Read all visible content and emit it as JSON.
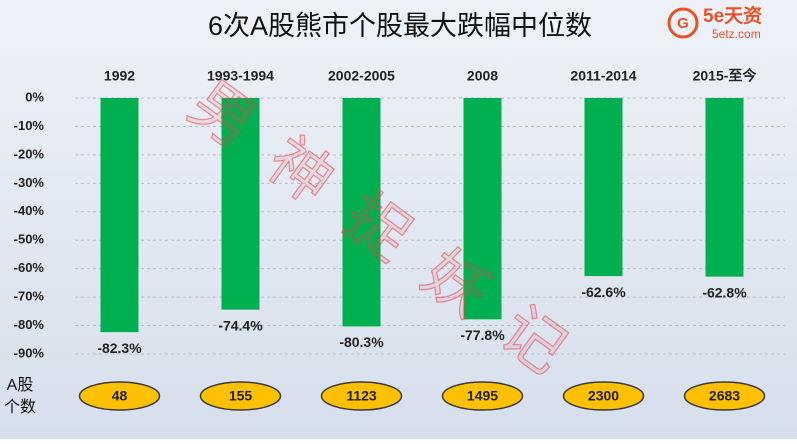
{
  "chart_data": {
    "type": "bar",
    "title": "6次A股熊市个股最大跌幅中位数",
    "logo_text": "5e天资",
    "logo_url": "5etz.com",
    "watermark": "男神捉妖记",
    "categories": [
      "1992",
      "1993-1994",
      "2002-2005",
      "2008",
      "2011-2014",
      "2015-至今"
    ],
    "values": [
      -82.3,
      -74.4,
      -80.3,
      -77.8,
      -62.6,
      -62.8
    ],
    "value_labels": [
      "-82.3%",
      "-74.4%",
      "-80.3%",
      "-77.8%",
      "-62.6%",
      "-62.8%"
    ],
    "color": "#00b050",
    "ylim": [
      -90,
      0
    ],
    "yticks": [
      {
        "value": 0,
        "label": "0%"
      },
      {
        "value": -10,
        "label": "-10%"
      },
      {
        "value": -20,
        "label": "-20%"
      },
      {
        "value": -30,
        "label": "-30%"
      },
      {
        "value": -40,
        "label": "-40%"
      },
      {
        "value": -50,
        "label": "-50%"
      },
      {
        "value": -60,
        "label": "-60%"
      },
      {
        "value": -70,
        "label": "-70%"
      },
      {
        "value": -80,
        "label": "-80%"
      },
      {
        "value": -90,
        "label": "-90%"
      }
    ],
    "grid": true,
    "count_label": [
      "A股",
      "个数"
    ],
    "counts": [
      48,
      155,
      1123,
      1495,
      2300,
      2683
    ],
    "count_color": "#ffc000"
  }
}
